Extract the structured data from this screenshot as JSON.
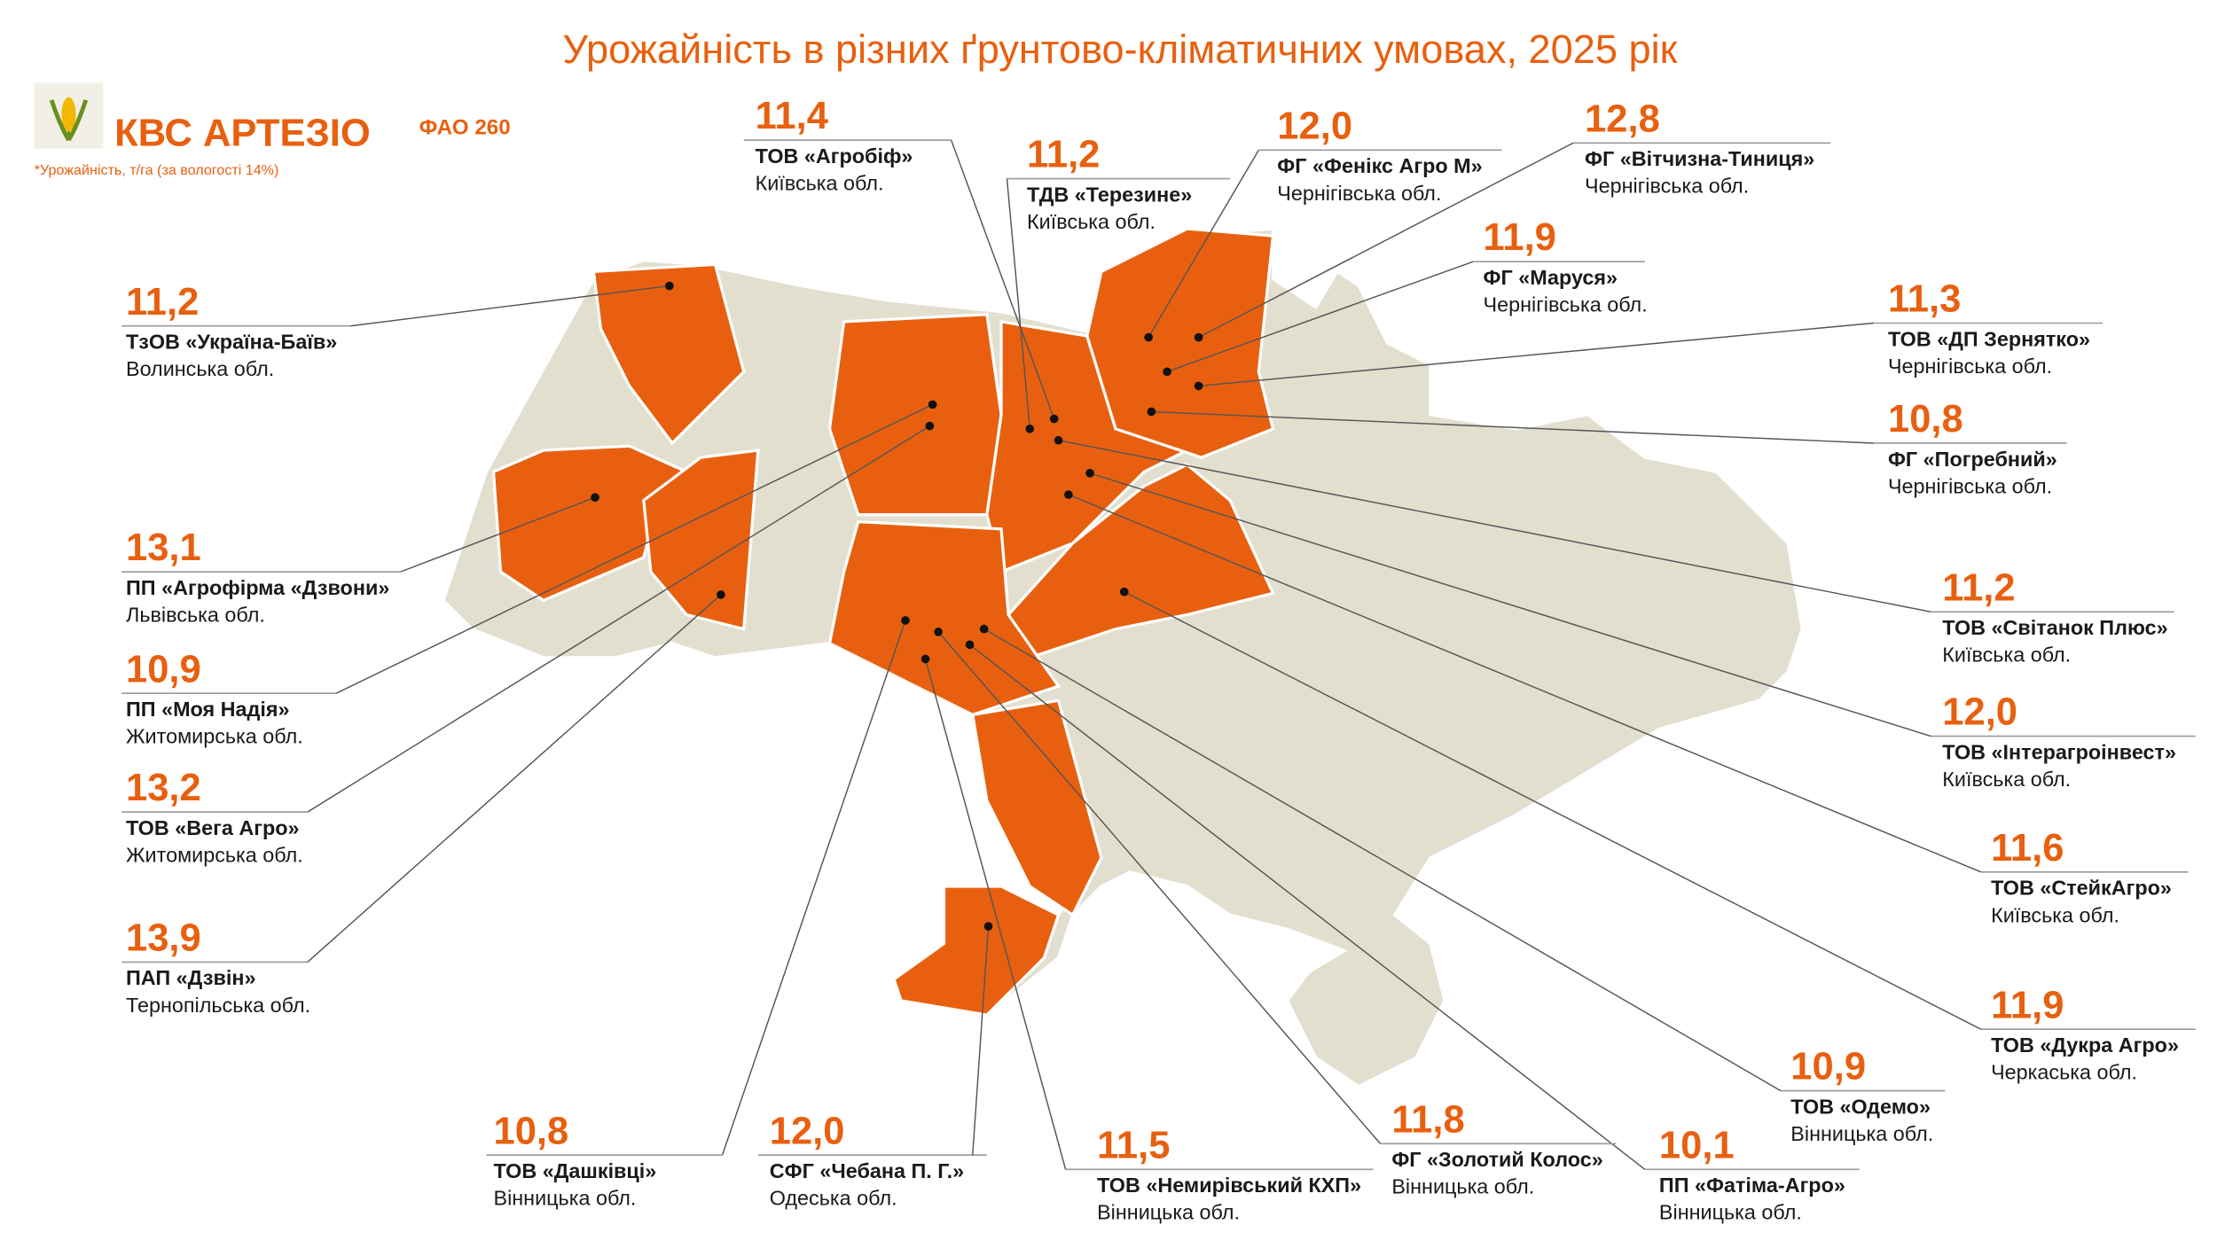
{
  "header": {
    "title": "Урожайність в різних ґрунтово-кліматичних умовах, 2025 рік",
    "brand": "КВС АРТЕЗІО",
    "fao": "ФАО 260",
    "note": "*Урожайність, т/га (за вологості 14%)"
  },
  "farms": [
    {
      "value": "11,4",
      "name": "ТОВ «Агробіф»",
      "region": "Київська обл."
    },
    {
      "value": "11,2",
      "name": "ТДВ «Терезине»",
      "region": "Київська обл."
    },
    {
      "value": "12,0",
      "name": "ФГ «Фенікс Агро М»",
      "region": "Чернігівська обл."
    },
    {
      "value": "12,8",
      "name": "ФГ «Вітчизна-Тиниця»",
      "region": "Чернігівська обл."
    },
    {
      "value": "11,9",
      "name": "ФГ «Маруся»",
      "region": "Чернігівська обл."
    },
    {
      "value": "11,3",
      "name": "ТОВ «ДП Зернятко»",
      "region": "Чернігівська обл."
    },
    {
      "value": "10,8",
      "name": "ФГ «Погребний»",
      "region": "Чернігівська обл."
    },
    {
      "value": "11,2",
      "name": "ТОВ «Світанок Плюс»",
      "region": "Київська обл."
    },
    {
      "value": "12,0",
      "name": "ТОВ «Інтерагроінвест»",
      "region": "Київська обл."
    },
    {
      "value": "11,6",
      "name": "ТОВ «СтейкАгро»",
      "region": "Київська обл."
    },
    {
      "value": "11,9",
      "name": "ТОВ «Дукра Агро»",
      "region": "Черкаська обл."
    },
    {
      "value": "10,9",
      "name": "ТОВ «Одемо»",
      "region": "Вінницька обл."
    },
    {
      "value": "10,1",
      "name": "ПП «Фатіма-Агро»",
      "region": "Вінницька обл."
    },
    {
      "value": "11,8",
      "name": "ФГ «Золотий Колос»",
      "region": "Вінницька обл."
    },
    {
      "value": "11,5",
      "name": "ТОВ «Немирівський КХП»",
      "region": "Вінницька обл."
    },
    {
      "value": "12,0",
      "name": "СФГ «Чебана П. Г.»",
      "region": "Одеська обл."
    },
    {
      "value": "10,8",
      "name": "ТОВ «Дашківці»",
      "region": "Вінницька обл."
    },
    {
      "value": "11,2",
      "name": "ТзОВ «Україна-Баїв»",
      "region": "Волинська обл."
    },
    {
      "value": "13,1",
      "name": "ПП «Агрофірма «Дзвони»",
      "region": "Львівська обл."
    },
    {
      "value": "10,9",
      "name": "ПП «Моя Надія»",
      "region": "Житомирська обл."
    },
    {
      "value": "13,2",
      "name": "ТОВ «Вега Агро»",
      "region": "Житомирська обл."
    },
    {
      "value": "13,9",
      "name": "ПАП «Дзвін»",
      "region": "Тернопільська обл."
    }
  ]
}
